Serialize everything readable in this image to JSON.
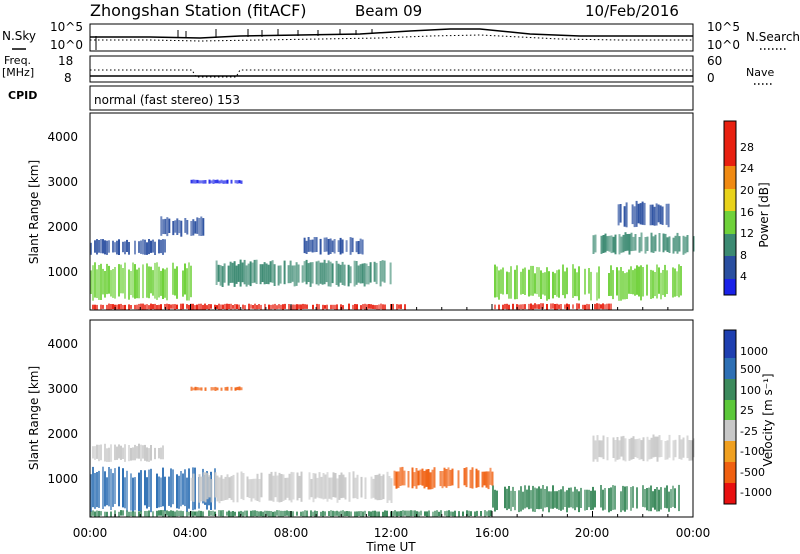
{
  "header": {
    "station": "Zhongshan Station (fitACF)",
    "beam": "Beam 09",
    "date": "10/Feb/2016"
  },
  "noise_panel": {
    "left_label": "N.Sky",
    "right_label": "N.Search",
    "left_ticks": [
      "10^5",
      "10^0"
    ],
    "right_ticks": [
      "10^5",
      "10^0"
    ]
  },
  "freq_panel": {
    "left_label_1": "Freq.",
    "left_label_2": "[MHz]",
    "left_ticks": [
      "18",
      "8"
    ],
    "right_ticks": [
      "60",
      "0"
    ],
    "right_label": "Nave"
  },
  "cpid_panel": {
    "label": "CPID",
    "text": "normal (fast stereo) 153"
  },
  "time_axis": {
    "ticks": [
      "00:00",
      "04:00",
      "08:00",
      "12:00",
      "16:00",
      "20:00",
      "00:00"
    ],
    "label": "Time UT"
  },
  "range_axis": {
    "label": "Slant Range [km]",
    "ticks": [
      "1000",
      "2000",
      "3000",
      "4000"
    ]
  },
  "power_scale": {
    "label": "Power [dB]",
    "ticks": [
      "4",
      "8",
      "12",
      "16",
      "20",
      "24",
      "28"
    ],
    "colors": [
      "#1a22e8",
      "#2a4fa0",
      "#3c8a72",
      "#6fd13a",
      "#e8d21a",
      "#f08a12",
      "#e82010"
    ]
  },
  "velocity_scale": {
    "label": "Velocity [m s⁻¹]",
    "ticks": [
      "1000",
      "500",
      "100",
      "25",
      "-25",
      "-100",
      "-500",
      "-1000"
    ],
    "colors": [
      "#1e3fb0",
      "#2d6fb4",
      "#3c8a5c",
      "#5cc83a",
      "#c8c8c8",
      "#f0a020",
      "#f06010",
      "#e81010"
    ]
  },
  "chart_data": [
    {
      "type": "heatmap",
      "title": "Power",
      "xlabel": "Time UT",
      "ylabel": "Slant Range [km]",
      "xlim": [
        "00:00",
        "24:00"
      ],
      "ylim": [
        200,
        4500
      ],
      "colorbar_label": "Power [dB]",
      "colorbar_range": [
        2,
        32
      ],
      "regions": [
        {
          "t": [
            0.0,
            12.5
          ],
          "range": [
            200,
            340
          ],
          "value": 26
        },
        {
          "t": [
            0.0,
            4.0
          ],
          "range": [
            400,
            1250
          ],
          "value": 14
        },
        {
          "t": [
            0.0,
            3.0
          ],
          "range": [
            1400,
            1750
          ],
          "value": 8
        },
        {
          "t": [
            2.8,
            4.5
          ],
          "range": [
            1800,
            2250
          ],
          "value": 6
        },
        {
          "t": [
            5.0,
            12.0
          ],
          "range": [
            700,
            1300
          ],
          "value": 12
        },
        {
          "t": [
            8.5,
            11.0
          ],
          "range": [
            1400,
            1800
          ],
          "value": 8
        },
        {
          "t": [
            4.0,
            6.0
          ],
          "range": [
            2950,
            3050
          ],
          "value": 4
        },
        {
          "t": [
            16.0,
            21.0
          ],
          "range": [
            200,
            350
          ],
          "value": 26
        },
        {
          "t": [
            16.0,
            23.5
          ],
          "range": [
            400,
            1200
          ],
          "value": 14
        },
        {
          "t": [
            20.0,
            24.0
          ],
          "range": [
            1400,
            1900
          ],
          "value": 10
        },
        {
          "t": [
            21.0,
            23.0
          ],
          "range": [
            2000,
            2600
          ],
          "value": 9
        }
      ]
    },
    {
      "type": "heatmap",
      "title": "Velocity",
      "xlabel": "Time UT",
      "ylabel": "Slant Range [km]",
      "xlim": [
        "00:00",
        "24:00"
      ],
      "ylim": [
        200,
        4500
      ],
      "colorbar_label": "Velocity [m s⁻¹]",
      "colorbar_range": [
        -1000,
        1000
      ],
      "regions": [
        {
          "t": [
            0.0,
            5.0
          ],
          "range": [
            300,
            1300
          ],
          "value": 700
        },
        {
          "t": [
            0.0,
            16.0
          ],
          "range": [
            200,
            350
          ],
          "value": 200
        },
        {
          "t": [
            4.0,
            12.0
          ],
          "range": [
            500,
            1200
          ],
          "value": 0
        },
        {
          "t": [
            0.0,
            3.0
          ],
          "range": [
            1400,
            1800
          ],
          "value": 0
        },
        {
          "t": [
            12.0,
            16.0
          ],
          "range": [
            800,
            1300
          ],
          "value": -150
        },
        {
          "t": [
            16.0,
            23.5
          ],
          "range": [
            300,
            900
          ],
          "value": 150
        },
        {
          "t": [
            20.0,
            24.0
          ],
          "range": [
            1400,
            2000
          ],
          "value": 0
        },
        {
          "t": [
            4.0,
            6.0
          ],
          "range": [
            2950,
            3050
          ],
          "value": -200
        }
      ]
    }
  ]
}
